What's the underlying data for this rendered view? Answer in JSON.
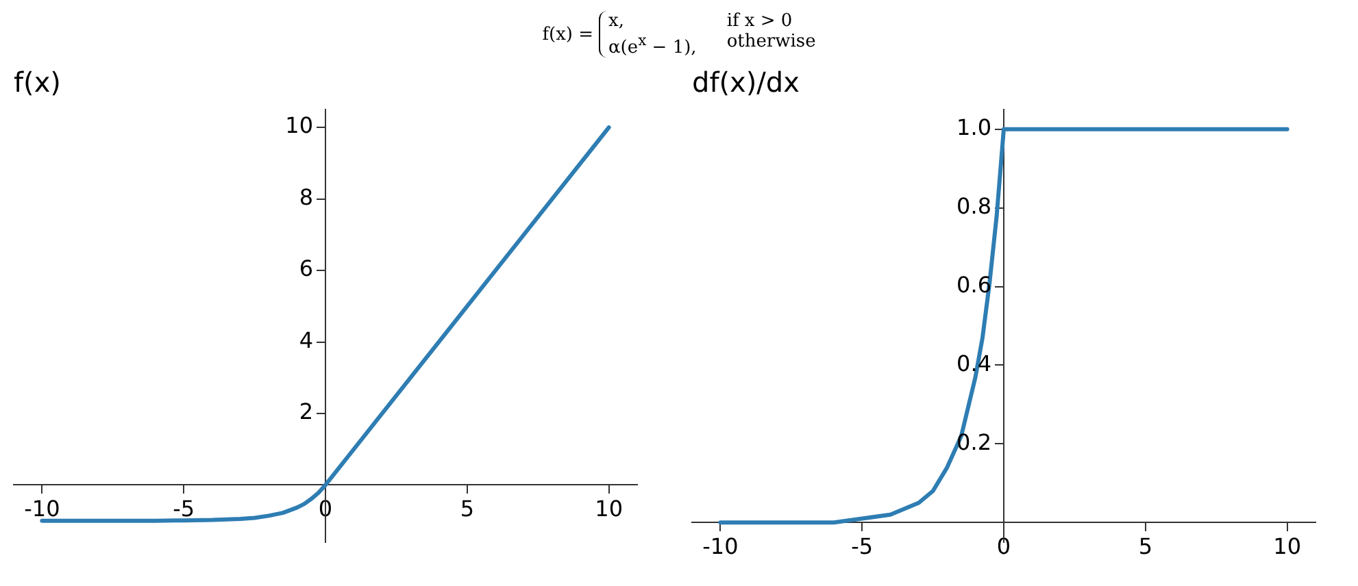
{
  "chart_data": [
    {
      "type": "line",
      "title": "f(x)",
      "annotations": [
        "f(x) = ",
        "x,",
        "if x > 0",
        "α(e$^{x}$ − 1),",
        "otherwise"
      ],
      "xlim": [
        -11,
        11
      ],
      "xticks": [
        -10,
        -5,
        0,
        5,
        10
      ],
      "ylim": [
        -1.6,
        10.5
      ],
      "yticks": [
        2,
        4,
        6,
        8,
        10
      ],
      "grid": false,
      "legend": false,
      "marker": "none",
      "line_style": "solid",
      "series": [
        {
          "color": "#2e7db3",
          "x": [
            -10,
            -8,
            -6,
            -5,
            -4,
            -3,
            -2.5,
            -2,
            -1.5,
            -1,
            -0.75,
            -0.5,
            -0.25,
            0,
            10
          ],
          "values": [
            -1,
            -1,
            -1,
            -0.99,
            -0.98,
            -0.95,
            -0.92,
            -0.86,
            -0.78,
            -0.63,
            -0.53,
            -0.39,
            -0.22,
            0,
            10
          ]
        }
      ]
    },
    {
      "type": "line",
      "title": "df(x)/dx",
      "xlim": [
        -11,
        11
      ],
      "xticks": [
        -10,
        -5,
        0,
        5,
        10
      ],
      "ylim": [
        -0.05,
        1.05
      ],
      "yticks": [
        0.2,
        0.4,
        0.6,
        0.8,
        {
          "value": 1,
          "label": "1.0"
        }
      ],
      "grid": false,
      "legend": false,
      "marker": "none",
      "line_style": "solid",
      "series": [
        {
          "color": "#2e7db3",
          "x": [
            -10,
            -8,
            -6,
            -5,
            -4,
            -3,
            -2.5,
            -2,
            -1.5,
            -1,
            -0.75,
            -0.5,
            -0.25,
            0,
            10
          ],
          "values": [
            0,
            0,
            0,
            0.01,
            0.02,
            0.05,
            0.08,
            0.14,
            0.22,
            0.37,
            0.47,
            0.61,
            0.78,
            1,
            1
          ]
        }
      ]
    }
  ]
}
